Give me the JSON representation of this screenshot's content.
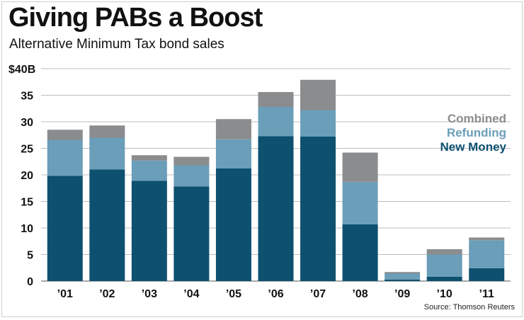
{
  "chart_data": {
    "type": "bar",
    "stacked": true,
    "title": "Giving PABs a Boost",
    "subtitle": "Alternative Minimum Tax bond sales",
    "y_top_label": "$40B",
    "ylim": [
      0,
      40
    ],
    "yticks": [
      "0",
      "5",
      "10",
      "15",
      "20",
      "25",
      "30",
      "35"
    ],
    "grid": true,
    "legend_position": "right",
    "categories": [
      "'01",
      "'02",
      "'03",
      "'04",
      "'05",
      "'06",
      "'07",
      "'08",
      "'09",
      "'10",
      "'11"
    ],
    "series": [
      {
        "name": "New Money",
        "color": "#0d5070",
        "values": [
          19.8,
          21.0,
          18.9,
          17.8,
          21.2,
          27.3,
          27.2,
          10.7,
          0.3,
          0.8,
          2.4
        ]
      },
      {
        "name": "Refunding",
        "color": "#6b9eb8",
        "values": [
          6.8,
          6.0,
          3.8,
          4.0,
          5.5,
          5.5,
          5.0,
          8.0,
          1.1,
          4.2,
          5.3
        ]
      },
      {
        "name": "Combined",
        "color": "#8a8c8e",
        "values": [
          1.9,
          2.3,
          1.0,
          1.6,
          3.8,
          2.8,
          5.7,
          5.5,
          0.3,
          1.0,
          0.5
        ]
      }
    ],
    "source": "Source: Thomson Reuters"
  }
}
